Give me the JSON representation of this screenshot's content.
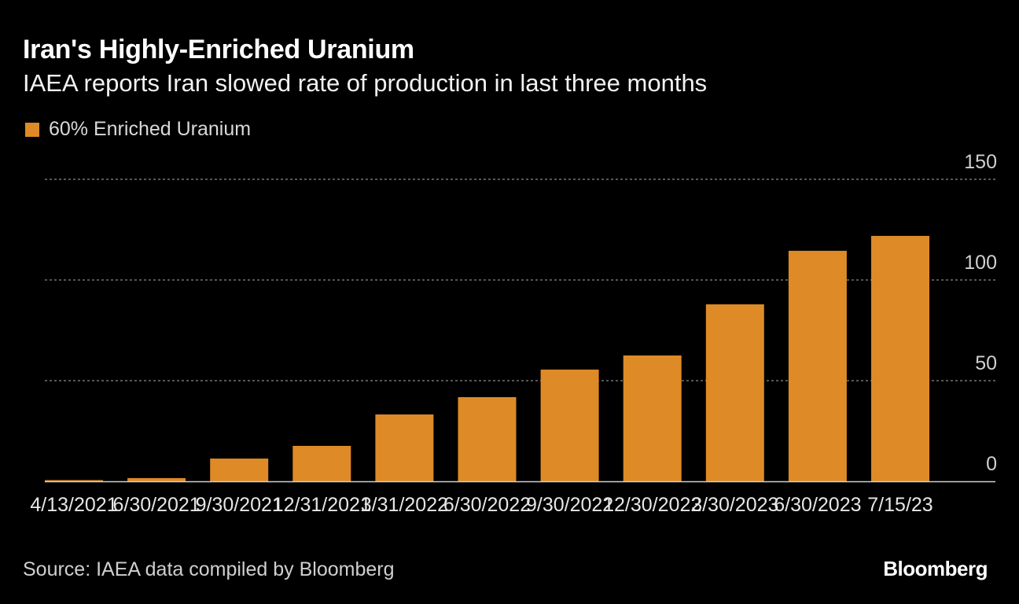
{
  "chart_data": {
    "type": "bar",
    "title": "Iran's Highly-Enriched Uranium",
    "subtitle": "IAEA reports Iran slowed rate of production in last three months",
    "categories": [
      "4/13/2021",
      "6/30/2021",
      "9/30/2021",
      "12/31/2021",
      "3/31/2022",
      "6/30/2022",
      "9/30/2022",
      "12/30/2022",
      "3/30/2023",
      "6/30/2023",
      "7/15/23"
    ],
    "series": [
      {
        "name": "60% Enriched Uranium",
        "values": [
          0.6,
          1.6,
          11.3,
          17.6,
          33.2,
          41.8,
          55.5,
          62.5,
          87.9,
          114.5,
          121.9
        ],
        "color": "#de8a26"
      }
    ],
    "ylim": [
      0,
      150
    ],
    "yticks": [
      0,
      50,
      100,
      150
    ],
    "y_axis_side": "right",
    "grid": true,
    "legend_position": "top-left",
    "source": "Source: IAEA data compiled by Bloomberg",
    "brand": "Bloomberg"
  }
}
